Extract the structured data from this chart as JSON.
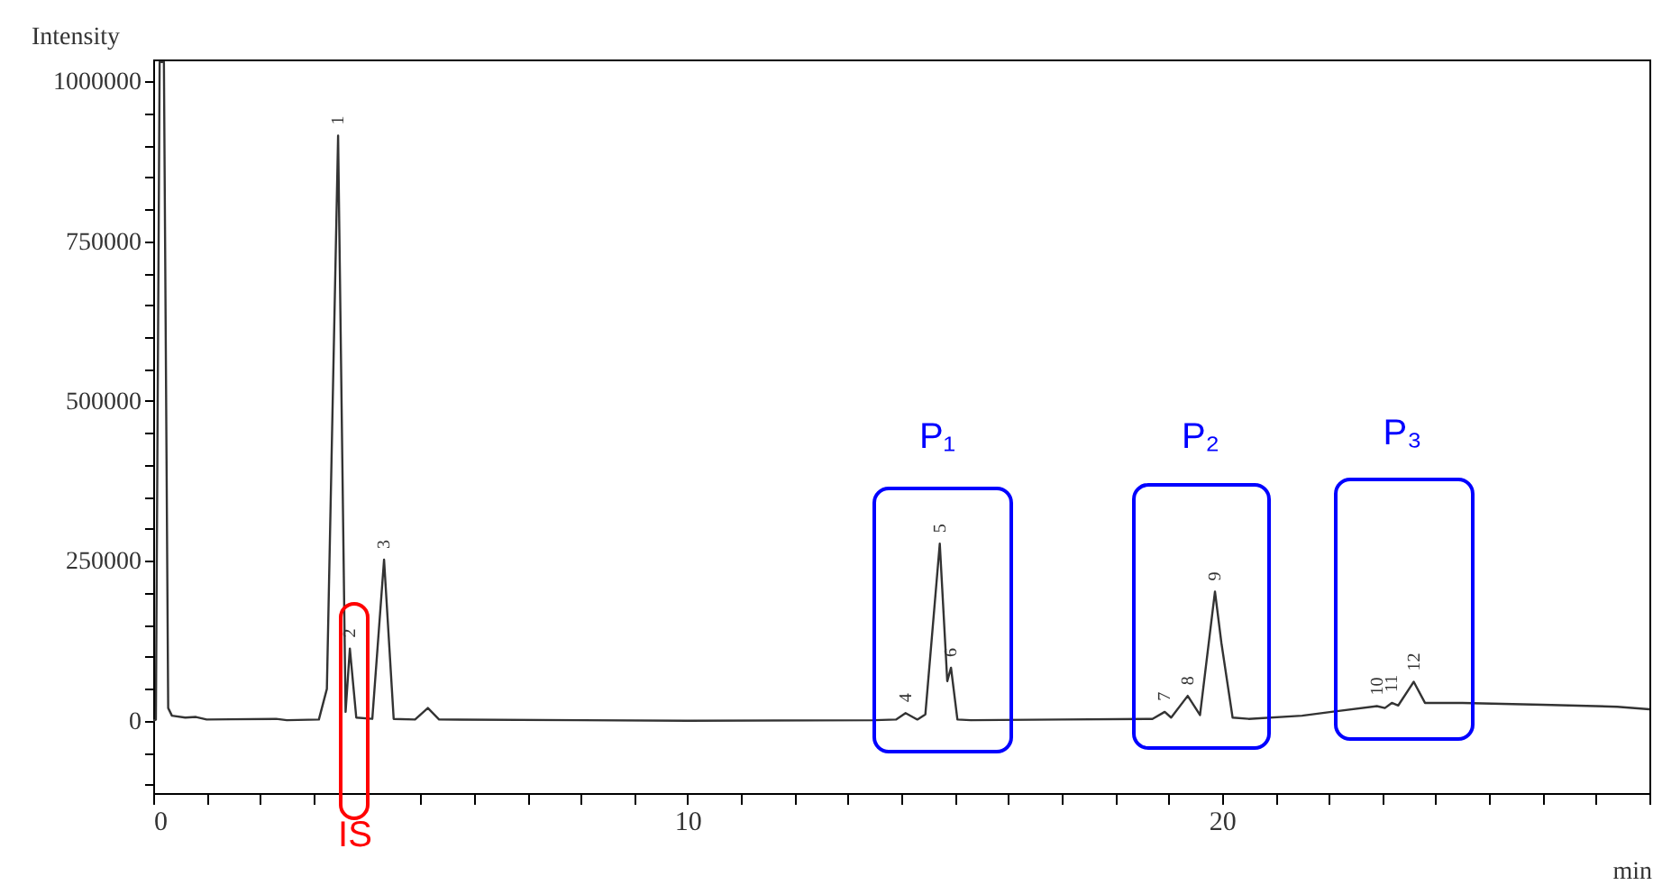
{
  "chart_data": {
    "type": "line",
    "xlabel": "min",
    "ylabel": "Intensity",
    "x": [
      0,
      0.05,
      0.12,
      0.2,
      0.28,
      0.35,
      0.6,
      0.8,
      1.0,
      2.3,
      2.5,
      3.1,
      3.25,
      3.46,
      3.6,
      3.68,
      3.8,
      4.1,
      4.32,
      4.5,
      4.9,
      5.14,
      5.35,
      8,
      10,
      13.5,
      13.9,
      14.08,
      14.3,
      14.45,
      14.72,
      14.86,
      14.93,
      15.05,
      15.3,
      17,
      18.7,
      18.93,
      19.05,
      19.36,
      19.59,
      19.87,
      19.99,
      20.2,
      20.5,
      21.5,
      22.05,
      22.9,
      23.05,
      23.18,
      23.3,
      23.59,
      23.8,
      24.5,
      26,
      27.4,
      28
    ],
    "series": [
      {
        "color": "#333333",
        "values": [
          0,
          2000,
          1030000,
          1030000,
          20000,
          8000,
          5000,
          6000,
          2000,
          3000,
          1000,
          2000,
          50000,
          915000,
          14000,
          113000,
          5000,
          3000,
          252000,
          3000,
          2000,
          20000,
          2000,
          1000,
          0,
          1000,
          2000,
          12000,
          2000,
          10000,
          277000,
          62000,
          83000,
          2000,
          1000,
          2000,
          3000,
          14000,
          5000,
          39000,
          9000,
          202000,
          122000,
          5000,
          3000,
          8000,
          14000,
          23000,
          20000,
          28000,
          24000,
          61000,
          28000,
          28000,
          25000,
          22000,
          18000
        ]
      }
    ],
    "xlim": [
      0,
      28
    ],
    "xticks": [
      0,
      {
        "value": 1,
        "label": null
      },
      {
        "value": 2,
        "label": null
      },
      {
        "value": 3,
        "label": null
      },
      {
        "value": 4,
        "label": null
      },
      {
        "value": 5,
        "label": null
      },
      {
        "value": 6,
        "label": null
      },
      {
        "value": 7,
        "label": null
      },
      {
        "value": 8,
        "label": null
      },
      {
        "value": 9,
        "label": null
      },
      10,
      {
        "value": 11,
        "label": null
      },
      {
        "value": 12,
        "label": null
      },
      {
        "value": 13,
        "label": null
      },
      {
        "value": 14,
        "label": null
      },
      {
        "value": 15,
        "label": null
      },
      {
        "value": 16,
        "label": null
      },
      {
        "value": 17,
        "label": null
      },
      {
        "value": 18,
        "label": null
      },
      {
        "value": 19,
        "label": null
      },
      20,
      {
        "value": 21,
        "label": null
      },
      {
        "value": 22,
        "label": null
      },
      {
        "value": 23,
        "label": null
      },
      {
        "value": 24,
        "label": null
      },
      {
        "value": 25,
        "label": null
      },
      {
        "value": 26,
        "label": null
      },
      {
        "value": 27,
        "label": null
      },
      {
        "value": 28,
        "label": null
      }
    ],
    "ylim": [
      -113000,
      1034000
    ],
    "yticks": [
      {
        "value": -100000,
        "label": null
      },
      {
        "value": -50000,
        "label": null
      },
      0,
      {
        "value": 50000,
        "label": null
      },
      {
        "value": 100000,
        "label": null
      },
      {
        "value": 150000,
        "label": null
      },
      {
        "value": 200000,
        "label": null
      },
      250000,
      {
        "value": 300000,
        "label": null
      },
      {
        "value": 350000,
        "label": null
      },
      {
        "value": 400000,
        "label": null
      },
      {
        "value": 450000,
        "label": null
      },
      500000,
      {
        "value": 550000,
        "label": null
      },
      {
        "value": 600000,
        "label": null
      },
      {
        "value": 650000,
        "label": null
      },
      {
        "value": 700000,
        "label": null
      },
      750000,
      {
        "value": 800000,
        "label": null
      },
      {
        "value": 850000,
        "label": null
      },
      {
        "value": 900000,
        "label": null
      },
      {
        "value": 950000,
        "label": null
      },
      1000000
    ],
    "annotations": [
      {
        "text": "1",
        "x": 3.46,
        "y": 915000
      },
      {
        "text": "2",
        "x": 3.68,
        "y": 113000
      },
      {
        "text": "3",
        "x": 4.32,
        "y": 252000
      },
      {
        "text": "4",
        "x": 14.08,
        "y": 12000
      },
      {
        "text": "5",
        "x": 14.72,
        "y": 277000
      },
      {
        "text": "6",
        "x": 14.93,
        "y": 83000
      },
      {
        "text": "7",
        "x": 18.93,
        "y": 14000
      },
      {
        "text": "8",
        "x": 19.36,
        "y": 39000
      },
      {
        "text": "9",
        "x": 19.87,
        "y": 202000
      },
      {
        "text": "10",
        "x": 22.9,
        "y": 23000
      },
      {
        "text": "11",
        "x": 23.18,
        "y": 28000
      },
      {
        "text": "12",
        "x": 23.59,
        "y": 61000
      },
      "IS",
      "P₁",
      "P₂",
      "P₃"
    ]
  }
}
